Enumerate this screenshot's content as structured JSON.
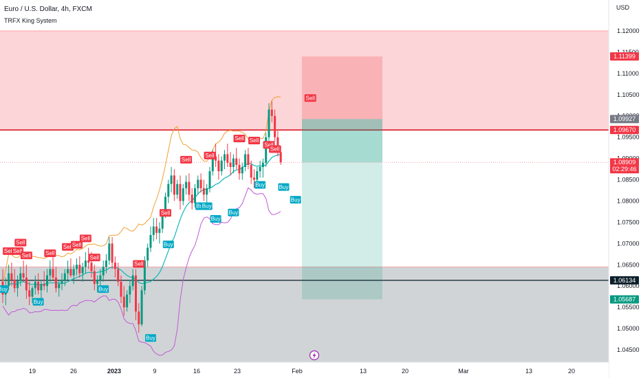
{
  "chart_data": {
    "type": "candlestick",
    "title": "Euro / U.S. Dollar, 4h, FXCM",
    "indicator": "TRFX King System",
    "currency": "USD",
    "ylim": [
      1.0425,
      1.1225
    ],
    "x_tick_labels": [
      "19",
      "26",
      "2023",
      "9",
      "16",
      "23",
      "Feb",
      "13",
      "20",
      "Mar",
      "13",
      "20"
    ],
    "y_tick_labels": [
      "1.12000",
      "1.11500",
      "1.11000",
      "1.10500",
      "1.10000",
      "1.09500",
      "1.09000",
      "1.08500",
      "1.08000",
      "1.07500",
      "1.07000",
      "1.06500",
      "1.06000",
      "1.05500",
      "1.05000",
      "1.04500"
    ],
    "price_labels": [
      {
        "text": "1.11399",
        "value": 1.11399,
        "color": "#f23645"
      },
      {
        "text": "1.09927",
        "value": 1.09927,
        "color": "#787b86"
      },
      {
        "text": "1.09670",
        "value": 1.0967,
        "color": "#f23645"
      },
      {
        "text": "1.08909",
        "value": 1.08909,
        "color": "#f23645",
        "countdown": "02:29:46"
      },
      {
        "text": "1.06134",
        "value": 1.06134,
        "color": "#0b1f2a"
      },
      {
        "text": "1.05687",
        "value": 1.05687,
        "color": "#089981"
      }
    ],
    "zones": {
      "supply": [
        1.0967,
        1.12
      ],
      "demand": [
        1.0421,
        1.0645
      ],
      "support_line": 1.06134
    },
    "position": {
      "entry": 1.09927,
      "stop": 1.11399,
      "target": 1.05687,
      "current": 1.08909
    },
    "candles": [
      [
        1.061,
        1.064,
        1.056,
        1.058
      ],
      [
        1.058,
        1.062,
        1.0555,
        1.06
      ],
      [
        1.06,
        1.065,
        1.059,
        1.063
      ],
      [
        1.063,
        1.0655,
        1.06,
        1.0615
      ],
      [
        1.0615,
        1.064,
        1.0585,
        1.0595
      ],
      [
        1.0595,
        1.0625,
        1.0575,
        1.0612
      ],
      [
        1.0612,
        1.0645,
        1.06,
        1.063
      ],
      [
        1.063,
        1.066,
        1.061,
        1.062
      ],
      [
        1.062,
        1.065,
        1.057,
        1.059
      ],
      [
        1.059,
        1.061,
        1.0555,
        1.0575
      ],
      [
        1.0575,
        1.06,
        1.056,
        1.0595
      ],
      [
        1.0595,
        1.0625,
        1.058,
        1.061
      ],
      [
        1.061,
        1.063,
        1.058,
        1.059
      ],
      [
        1.059,
        1.0615,
        1.057,
        1.0605
      ],
      [
        1.0605,
        1.0635,
        1.059,
        1.06
      ],
      [
        1.06,
        1.064,
        1.0585,
        1.0625
      ],
      [
        1.0625,
        1.066,
        1.061,
        1.064
      ],
      [
        1.064,
        1.067,
        1.0615,
        1.062
      ],
      [
        1.062,
        1.0645,
        1.0585,
        1.0595
      ],
      [
        1.0595,
        1.0615,
        1.0575,
        1.0605
      ],
      [
        1.0605,
        1.063,
        1.059,
        1.0615
      ],
      [
        1.0615,
        1.064,
        1.06,
        1.063
      ],
      [
        1.063,
        1.066,
        1.0615,
        1.064
      ],
      [
        1.064,
        1.0665,
        1.062,
        1.0625
      ],
      [
        1.0625,
        1.065,
        1.0605,
        1.064
      ],
      [
        1.064,
        1.0665,
        1.0625,
        1.065
      ],
      [
        1.065,
        1.067,
        1.062,
        1.063
      ],
      [
        1.063,
        1.0655,
        1.061,
        1.0645
      ],
      [
        1.0645,
        1.068,
        1.063,
        1.066
      ],
      [
        1.066,
        1.069,
        1.064,
        1.0655
      ],
      [
        1.0655,
        1.068,
        1.062,
        1.0635
      ],
      [
        1.0635,
        1.065,
        1.059,
        1.0605
      ],
      [
        1.0605,
        1.0625,
        1.0585,
        1.0615
      ],
      [
        1.0615,
        1.064,
        1.06,
        1.0625
      ],
      [
        1.0625,
        1.066,
        1.061,
        1.0645
      ],
      [
        1.0645,
        1.0675,
        1.063,
        1.066
      ],
      [
        1.066,
        1.0715,
        1.065,
        1.07
      ],
      [
        1.07,
        1.0715,
        1.064,
        1.0655
      ],
      [
        1.0655,
        1.067,
        1.062,
        1.064
      ],
      [
        1.064,
        1.0655,
        1.06,
        1.061
      ],
      [
        1.061,
        1.0625,
        1.056,
        1.0575
      ],
      [
        1.0575,
        1.06,
        1.053,
        1.055
      ],
      [
        1.055,
        1.059,
        1.054,
        1.058
      ],
      [
        1.058,
        1.0615,
        1.056,
        1.06
      ],
      [
        1.06,
        1.064,
        1.059,
        1.0625
      ],
      [
        1.0625,
        1.064,
        1.052,
        1.054
      ],
      [
        1.054,
        1.056,
        1.049,
        1.051
      ],
      [
        1.051,
        1.06,
        1.0505,
        1.059
      ],
      [
        1.059,
        1.067,
        1.058,
        1.066
      ],
      [
        1.066,
        1.07,
        1.0645,
        1.069
      ],
      [
        1.069,
        1.074,
        1.068,
        1.072
      ],
      [
        1.072,
        1.076,
        1.0705,
        1.074
      ],
      [
        1.074,
        1.076,
        1.071,
        1.0725
      ],
      [
        1.0725,
        1.075,
        1.07,
        1.0735
      ],
      [
        1.0735,
        1.078,
        1.0725,
        1.077
      ],
      [
        1.077,
        1.082,
        1.076,
        1.081
      ],
      [
        1.081,
        1.085,
        1.0795,
        1.084
      ],
      [
        1.084,
        1.088,
        1.082,
        1.086
      ],
      [
        1.086,
        1.0875,
        1.08,
        1.0815
      ],
      [
        1.0815,
        1.085,
        1.0805,
        1.084
      ],
      [
        1.084,
        1.086,
        1.078,
        1.08
      ],
      [
        1.08,
        1.084,
        1.079,
        1.083
      ],
      [
        1.083,
        1.086,
        1.0815,
        1.0845
      ],
      [
        1.0845,
        1.0865,
        1.08,
        1.0815
      ],
      [
        1.0815,
        1.083,
        1.078,
        1.0795
      ],
      [
        1.0795,
        1.084,
        1.0785,
        1.083
      ],
      [
        1.083,
        1.086,
        1.0815,
        1.085
      ],
      [
        1.085,
        1.0865,
        1.082,
        1.083
      ],
      [
        1.083,
        1.085,
        1.08,
        1.0815
      ],
      [
        1.0815,
        1.084,
        1.0795,
        1.083
      ],
      [
        1.083,
        1.088,
        1.082,
        1.087
      ],
      [
        1.087,
        1.092,
        1.086,
        1.0905
      ],
      [
        1.0905,
        1.0935,
        1.088,
        1.0895
      ],
      [
        1.0895,
        1.091,
        1.085,
        1.087
      ],
      [
        1.087,
        1.0905,
        1.086,
        1.0895
      ],
      [
        1.0895,
        1.092,
        1.0875,
        1.091
      ],
      [
        1.091,
        1.0935,
        1.088,
        1.089
      ],
      [
        1.089,
        1.0915,
        1.086,
        1.088
      ],
      [
        1.088,
        1.091,
        1.0865,
        1.09
      ],
      [
        1.09,
        1.0925,
        1.0875,
        1.0885
      ],
      [
        1.0885,
        1.09,
        1.085,
        1.0865
      ],
      [
        1.0865,
        1.089,
        1.085,
        1.088
      ],
      [
        1.088,
        1.092,
        1.087,
        1.091
      ],
      [
        1.091,
        1.0925,
        1.0875,
        1.0885
      ],
      [
        1.0885,
        1.0895,
        1.084,
        1.0855
      ],
      [
        1.0855,
        1.0875,
        1.083,
        1.085
      ],
      [
        1.085,
        1.088,
        1.084,
        1.087
      ],
      [
        1.087,
        1.0895,
        1.0855,
        1.088
      ],
      [
        1.088,
        1.09,
        1.0855,
        1.089
      ],
      [
        1.089,
        1.096,
        1.088,
        1.095
      ],
      [
        1.095,
        1.103,
        1.094,
        1.1015
      ],
      [
        1.1015,
        1.1035,
        1.0985,
        1.1
      ],
      [
        1.1,
        1.1015,
        1.094,
        1.095
      ],
      [
        1.095,
        1.0965,
        1.0905,
        1.0915
      ],
      [
        1.0915,
        1.093,
        1.0885,
        1.0891
      ]
    ],
    "signals": [
      {
        "label": "Sell",
        "bar": 2,
        "value": 1.067
      },
      {
        "label": "Sell",
        "bar": 6,
        "value": 1.069
      },
      {
        "label": "Sell",
        "bar": 5,
        "value": 1.067
      },
      {
        "label": "Sell",
        "bar": 8,
        "value": 1.066
      },
      {
        "label": "Buy",
        "bar": 0,
        "value": 1.0605
      },
      {
        "label": "Buy",
        "bar": 12,
        "value": 1.0575
      },
      {
        "label": "Sell",
        "bar": 16,
        "value": 1.0665
      },
      {
        "label": "Sell",
        "bar": 22,
        "value": 1.068
      },
      {
        "label": "Sell",
        "bar": 25,
        "value": 1.0685
      },
      {
        "label": "Sell",
        "bar": 28,
        "value": 1.07
      },
      {
        "label": "Sell",
        "bar": 31,
        "value": 1.0655
      },
      {
        "label": "Buy",
        "bar": 34,
        "value": 1.0605
      },
      {
        "label": "Sell",
        "bar": 46,
        "value": 1.064
      },
      {
        "label": "Buy",
        "bar": 50,
        "value": 1.049
      },
      {
        "label": "Buy",
        "bar": 56,
        "value": 1.071
      },
      {
        "label": "Sell",
        "bar": 55,
        "value": 1.076
      },
      {
        "label": "Sell",
        "bar": 62,
        "value": 1.0885
      },
      {
        "label": "Buy",
        "bar": 67,
        "value": 1.08
      },
      {
        "label": "Buy",
        "bar": 69,
        "value": 1.08
      },
      {
        "label": "Buy",
        "bar": 72,
        "value": 1.077
      },
      {
        "label": "Sell",
        "bar": 70,
        "value": 1.0895
      },
      {
        "label": "Buy",
        "bar": 78,
        "value": 1.0785
      },
      {
        "label": "Sell",
        "bar": 80,
        "value": 1.0935
      },
      {
        "label": "Sell",
        "bar": 85,
        "value": 1.093
      },
      {
        "label": "Buy",
        "bar": 87,
        "value": 1.085
      },
      {
        "label": "Sell",
        "bar": 90,
        "value": 1.092
      },
      {
        "label": "Sell",
        "bar": 92,
        "value": 1.091
      },
      {
        "label": "Buy",
        "bar": 95,
        "value": 1.0845
      },
      {
        "label": "Buy",
        "bar": 99,
        "value": 1.0815
      },
      {
        "label": "Sell",
        "bar": 104,
        "value": 1.103
      }
    ]
  }
}
